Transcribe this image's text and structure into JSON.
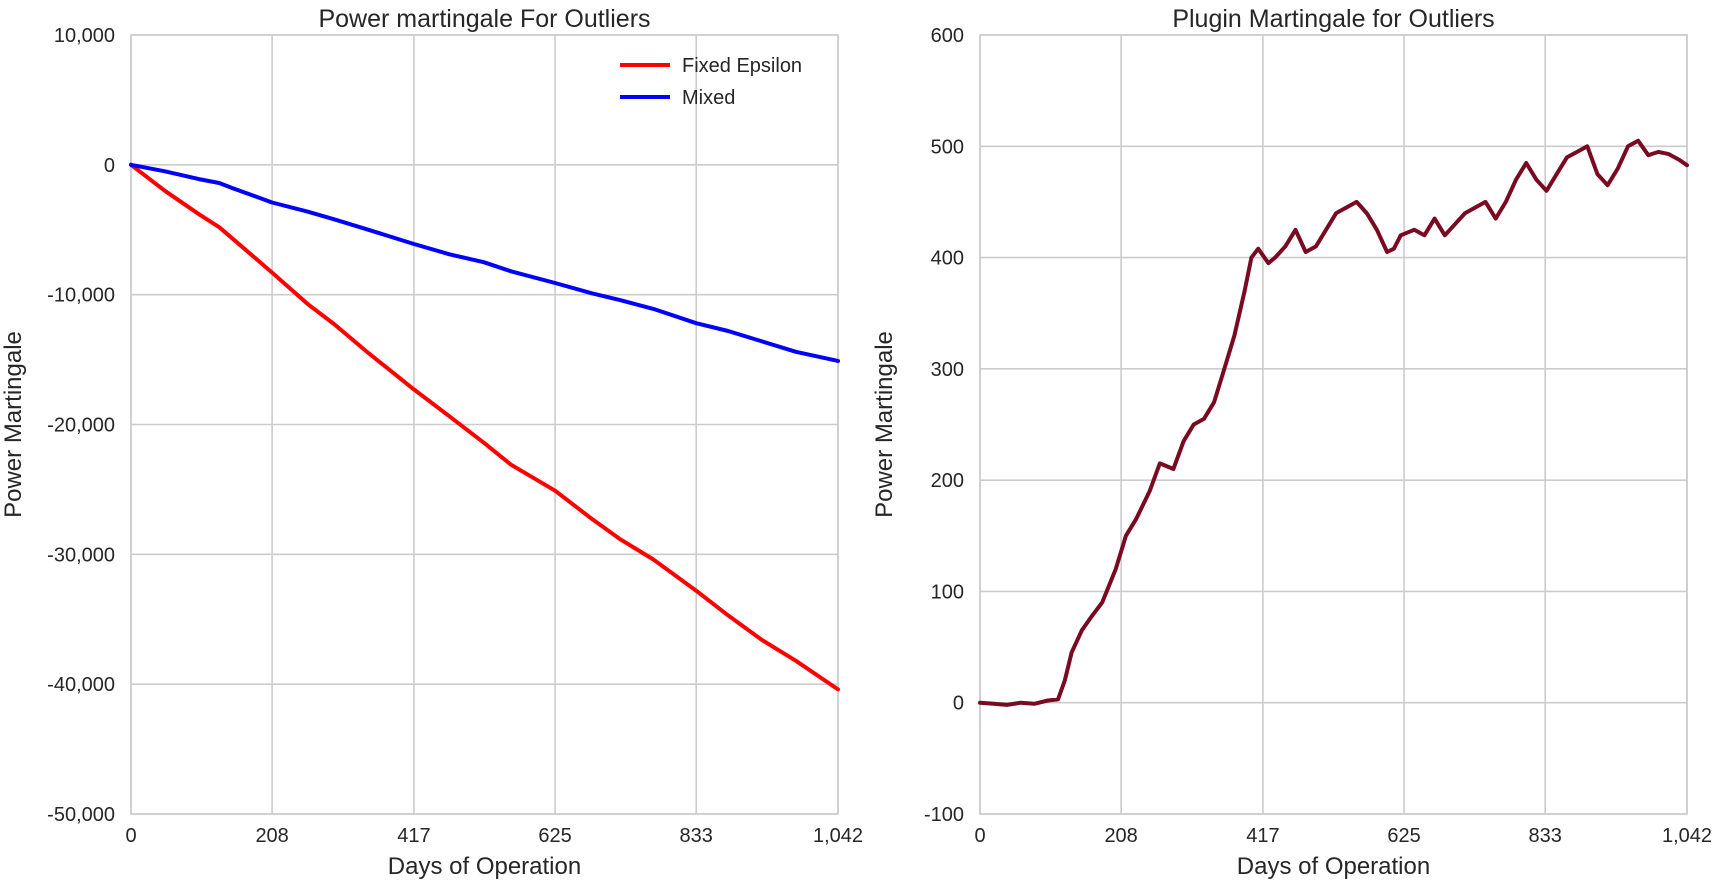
{
  "chart_data": [
    {
      "type": "line",
      "title": "Power martingale For Outliers",
      "xlabel": "Days of Operation",
      "ylabel": "Power Martingale",
      "xlim": [
        0,
        1042
      ],
      "ylim": [
        -50000,
        10000
      ],
      "grid": true,
      "legend_position": "top-right",
      "x_ticks": [
        0,
        208,
        417,
        625,
        833,
        1042
      ],
      "x_tick_labels": [
        "0",
        "208",
        "417",
        "625",
        "833",
        "1,042"
      ],
      "y_ticks": [
        10000,
        0,
        -10000,
        -20000,
        -30000,
        -40000,
        -50000
      ],
      "y_tick_labels": [
        "10,000",
        "0",
        "-10,000",
        "-20,000",
        "-30,000",
        "-40,000",
        "-50,000"
      ],
      "series": [
        {
          "name": "Fixed Epsilon",
          "color": "#ff0000",
          "x": [
            0,
            50,
            100,
            130,
            150,
            208,
            260,
            300,
            350,
            417,
            470,
            520,
            560,
            625,
            680,
            720,
            770,
            833,
            880,
            930,
            980,
            1042
          ],
          "y": [
            0,
            -2000,
            -3800,
            -4800,
            -5700,
            -8300,
            -10700,
            -12300,
            -14500,
            -17300,
            -19400,
            -21400,
            -23100,
            -25100,
            -27300,
            -28800,
            -30400,
            -32800,
            -34700,
            -36600,
            -38200,
            -40400
          ]
        },
        {
          "name": "Mixed",
          "color": "#0000ff",
          "x": [
            0,
            50,
            100,
            130,
            150,
            208,
            260,
            300,
            350,
            417,
            470,
            520,
            560,
            625,
            680,
            720,
            770,
            833,
            880,
            930,
            980,
            1042
          ],
          "y": [
            0,
            -500,
            -1100,
            -1400,
            -1800,
            -2900,
            -3600,
            -4200,
            -5000,
            -6100,
            -6900,
            -7500,
            -8200,
            -9100,
            -9900,
            -10400,
            -11100,
            -12200,
            -12800,
            -13600,
            -14400,
            -15100
          ]
        }
      ]
    },
    {
      "type": "line",
      "title": "Plugin Martingale for Outliers",
      "xlabel": "Days of Operation",
      "ylabel": "Power Martingale",
      "xlim": [
        0,
        1042
      ],
      "ylim": [
        -100,
        600
      ],
      "grid": true,
      "x_ticks": [
        0,
        208,
        417,
        625,
        833,
        1042
      ],
      "x_tick_labels": [
        "0",
        "208",
        "417",
        "625",
        "833",
        "1,042"
      ],
      "y_ticks": [
        600,
        500,
        400,
        300,
        200,
        100,
        0,
        -100
      ],
      "y_tick_labels": [
        "600",
        "500",
        "400",
        "300",
        "200",
        "100",
        "0",
        "-100"
      ],
      "series": [
        {
          "color": "#7a0a22",
          "x": [
            0,
            20,
            40,
            60,
            80,
            100,
            115,
            125,
            135,
            150,
            165,
            180,
            200,
            215,
            230,
            250,
            265,
            285,
            300,
            315,
            330,
            345,
            360,
            375,
            390,
            400,
            410,
            425,
            435,
            450,
            465,
            480,
            495,
            510,
            525,
            540,
            555,
            570,
            585,
            600,
            610,
            620,
            640,
            655,
            670,
            685,
            700,
            715,
            730,
            745,
            760,
            775,
            790,
            805,
            820,
            835,
            850,
            865,
            880,
            895,
            910,
            925,
            940,
            955,
            970,
            985,
            1000,
            1015,
            1030,
            1042
          ],
          "y": [
            0,
            -1,
            -2,
            0,
            -1,
            2,
            3,
            20,
            45,
            65,
            78,
            90,
            120,
            150,
            165,
            190,
            215,
            210,
            235,
            250,
            255,
            270,
            300,
            330,
            370,
            400,
            408,
            395,
            400,
            410,
            425,
            405,
            410,
            425,
            440,
            445,
            450,
            440,
            425,
            405,
            408,
            420,
            425,
            420,
            435,
            420,
            430,
            440,
            445,
            450,
            435,
            450,
            470,
            485,
            470,
            460,
            475,
            490,
            495,
            500,
            475,
            465,
            480,
            500,
            505,
            492,
            495,
            493,
            488,
            483
          ]
        }
      ]
    }
  ]
}
